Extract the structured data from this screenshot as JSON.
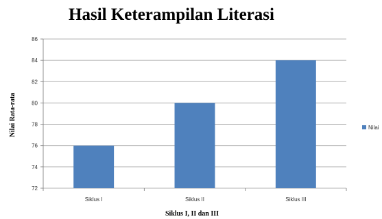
{
  "chart_data": {
    "type": "bar",
    "title": "Hasil Keterampilan Literasi",
    "xlabel": "Siklus I, II dan III",
    "ylabel": "Nilai Rata-rata",
    "categories": [
      "Siklus I",
      "Siklus II",
      "Siklus III"
    ],
    "series": [
      {
        "name": "Nilai",
        "values": [
          76,
          80,
          84
        ],
        "color": "#4f81bd"
      }
    ],
    "ylim": [
      72,
      86
    ],
    "yticks": [
      72,
      74,
      76,
      78,
      80,
      82,
      84,
      86
    ],
    "grid": true,
    "legend": "right"
  }
}
